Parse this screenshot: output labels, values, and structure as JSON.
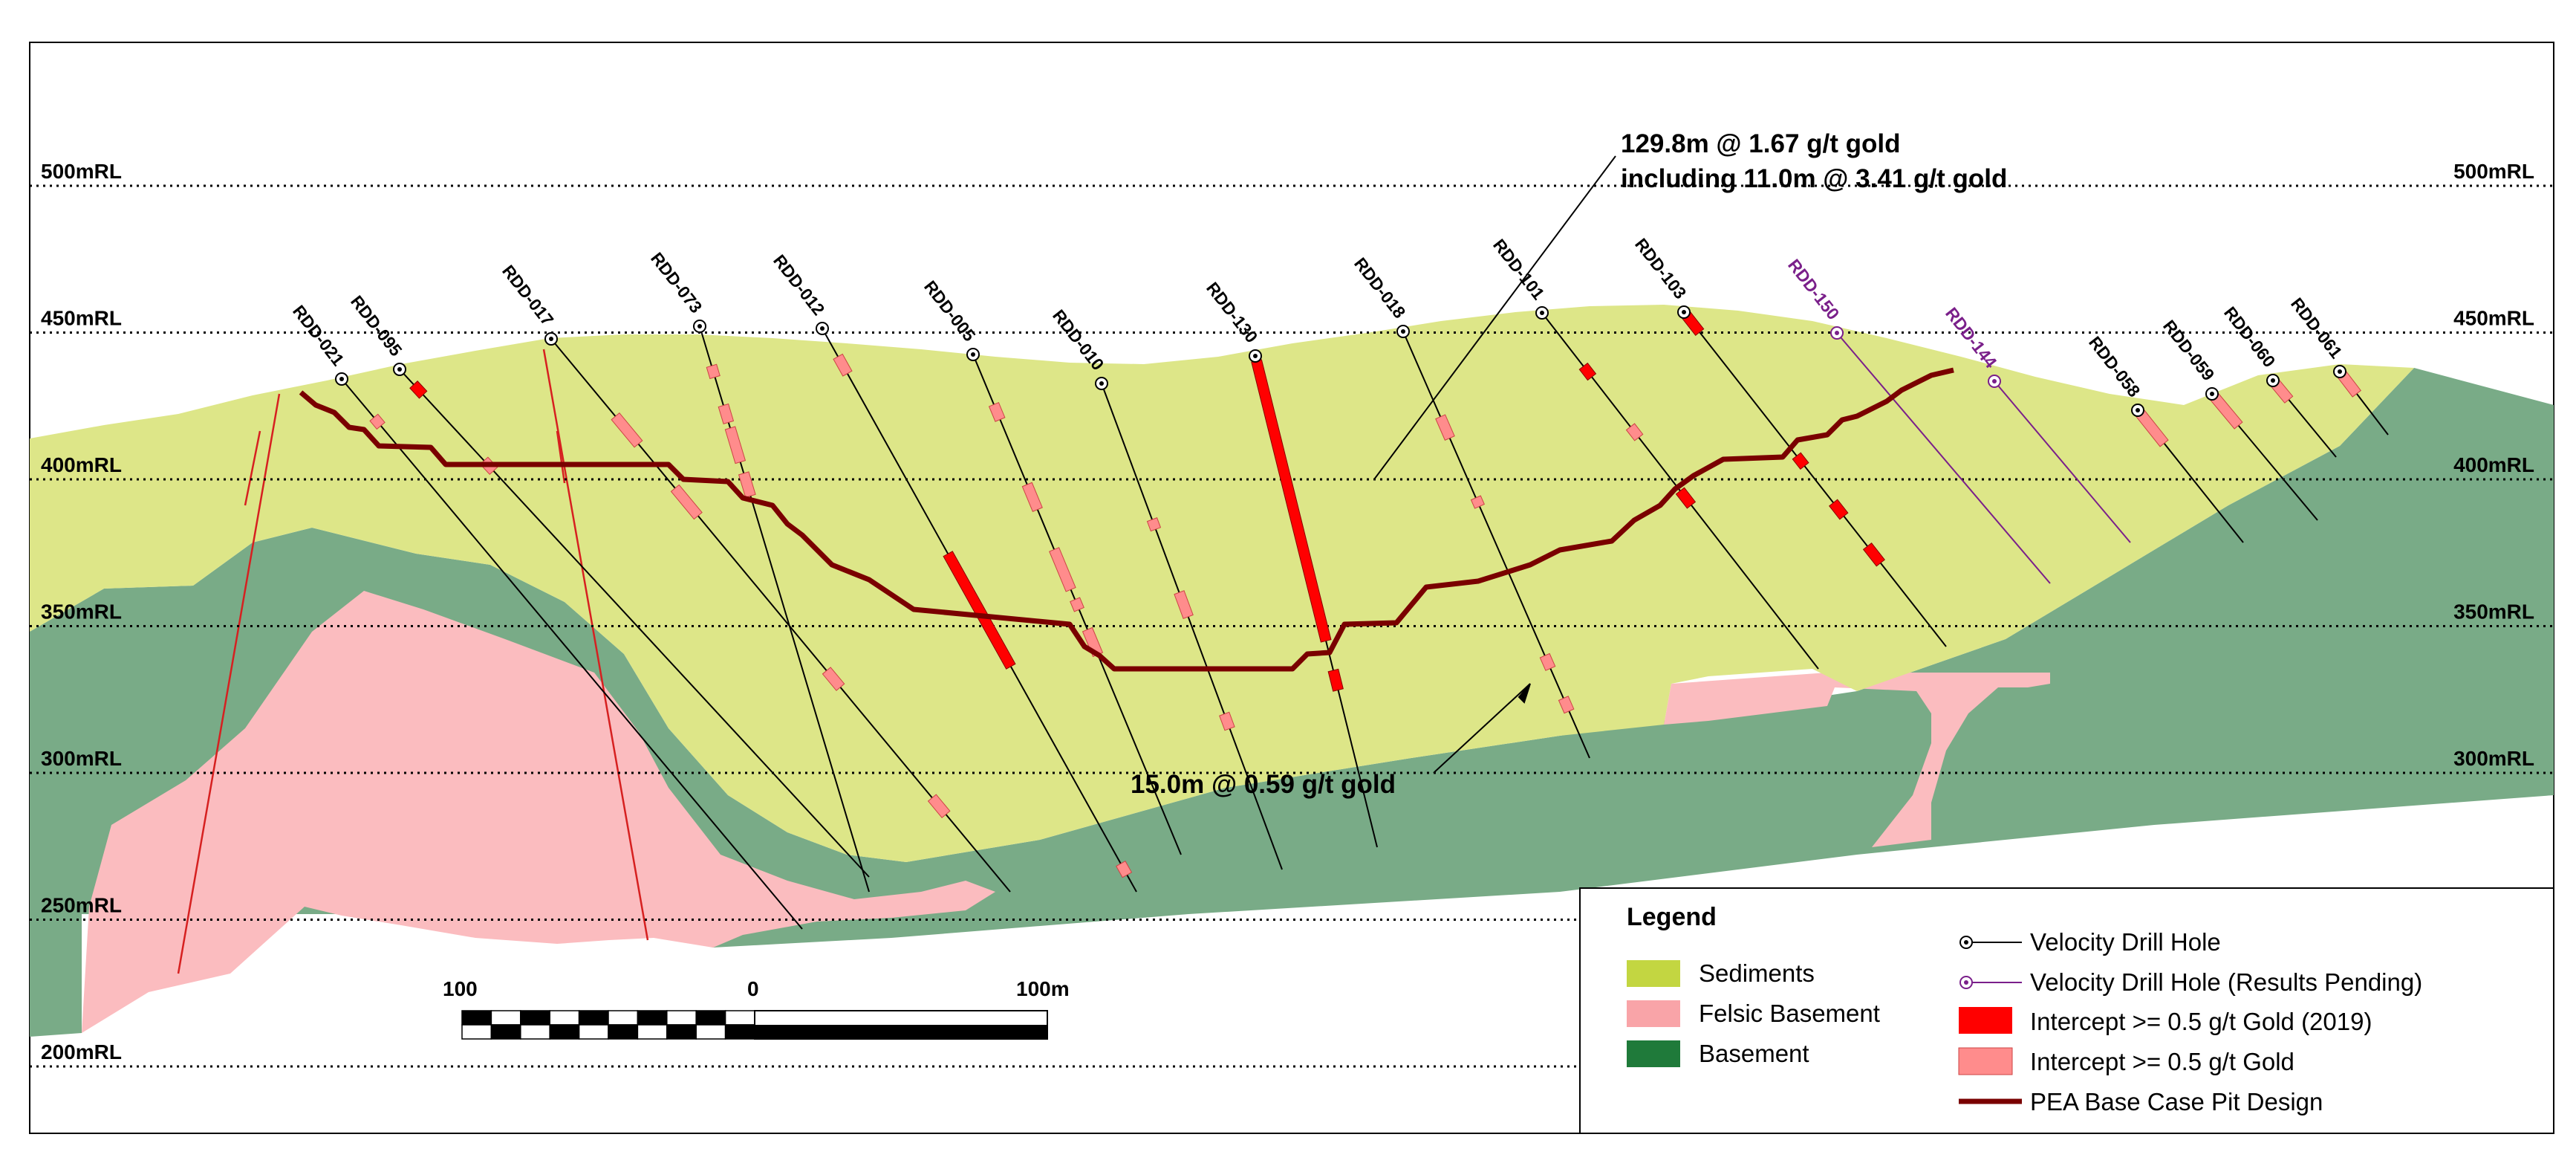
{
  "levels": [
    {
      "label": "500mRL",
      "rl": 500
    },
    {
      "label": "450mRL",
      "rl": 450
    },
    {
      "label": "400mRL",
      "rl": 400
    },
    {
      "label": "350mRL",
      "rl": 350
    },
    {
      "label": "300mRL",
      "rl": 300
    },
    {
      "label": "250mRL",
      "rl": 250
    },
    {
      "label": "200mRL",
      "rl": 200
    }
  ],
  "holes": [
    {
      "name": "RDD-021",
      "status": "velocity"
    },
    {
      "name": "RDD-095",
      "status": "velocity"
    },
    {
      "name": "RDD-017",
      "status": "velocity"
    },
    {
      "name": "RDD-073",
      "status": "velocity"
    },
    {
      "name": "RDD-012",
      "status": "velocity"
    },
    {
      "name": "RDD-005",
      "status": "velocity"
    },
    {
      "name": "RDD-010",
      "status": "velocity"
    },
    {
      "name": "RDD-130",
      "status": "velocity"
    },
    {
      "name": "RDD-018",
      "status": "velocity"
    },
    {
      "name": "RDD-101",
      "status": "velocity"
    },
    {
      "name": "RDD-103",
      "status": "velocity"
    },
    {
      "name": "RDD-150",
      "status": "pending"
    },
    {
      "name": "RDD-144",
      "status": "pending"
    },
    {
      "name": "RDD-058",
      "status": "velocity"
    },
    {
      "name": "RDD-059",
      "status": "velocity"
    },
    {
      "name": "RDD-060",
      "status": "velocity"
    },
    {
      "name": "RDD-061",
      "status": "velocity"
    }
  ],
  "annotations": {
    "main_line1": "129.8m @ 1.67 g/t gold",
    "main_line2": "including 11.0m @ 3.41 g/t gold",
    "secondary": "15.0m @ 0.59 g/t gold"
  },
  "scale_bar": {
    "left_label": "100",
    "mid_label": "0",
    "right_label": "100m"
  },
  "legend": {
    "title": "Legend",
    "sediments": "Sediments",
    "felsic": "Felsic Basement",
    "basement": "Basement",
    "velocity_hole": "Velocity Drill Hole",
    "pending_hole": "Velocity Drill Hole (Results Pending)",
    "intercept_2019": "Intercept >= 0.5 g/t Gold (2019)",
    "intercept": "Intercept >= 0.5 g/t Gold",
    "pit": "PEA Base Case Pit Design"
  },
  "colors": {
    "sediments": "#dde688",
    "sediments_legend": "#c3d641",
    "felsic": "#fbbcbf",
    "felsic_legend": "#f9a4a8",
    "basement": "#79ab87",
    "basement_legend": "#1f7a3a",
    "intercept_2019": "#ff0000",
    "intercept": "#ff8c8c",
    "pit": "#7a0000",
    "pending": "#7a1f8a",
    "fault": "#d62020"
  }
}
